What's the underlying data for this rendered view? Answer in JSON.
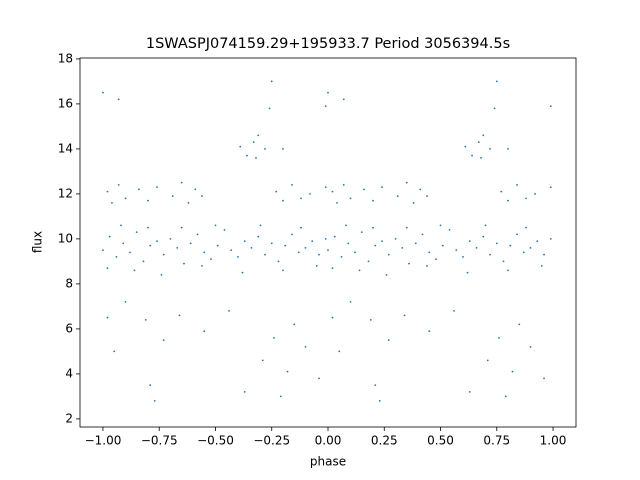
{
  "chart_data": {
    "type": "scatter",
    "title": "1SWASPJ074159.29+195933.7 Period 3056394.5s",
    "x_label": "phase",
    "y_label": "flux",
    "color": "#1f77b4",
    "xlim": [
      -1.102,
      1.102
    ],
    "ylim": [
      1.64,
      18.04
    ],
    "xticks": [
      {
        "value": -1,
        "label": "−1.00"
      },
      {
        "value": -0.75,
        "label": "−0.75"
      },
      {
        "value": -0.5,
        "label": "−0.50"
      },
      {
        "value": -0.25,
        "label": "−0.25"
      },
      {
        "value": 0,
        "label": "0.00"
      },
      {
        "value": 0.25,
        "label": "0.25"
      },
      {
        "value": 0.5,
        "label": "0.50"
      },
      {
        "value": 0.75,
        "label": "0.75"
      },
      {
        "value": 1,
        "label": "1.00"
      }
    ],
    "yticks": [
      2,
      4,
      6,
      8,
      10,
      12,
      14,
      16,
      18
    ],
    "x": [
      0,
      0.03,
      0.06,
      0.09,
      0.12,
      0.15,
      0.18,
      0.21,
      0.24,
      0.27,
      0.3,
      0.33,
      0.36,
      0.39,
      0.42,
      0.45,
      0.48,
      0.51,
      0.54,
      0.57,
      0.6,
      0.63,
      0.66,
      0.69,
      0.72,
      0.75,
      0.78,
      0.81,
      0.84,
      0.87,
      0.9,
      0.93,
      0.96,
      0.99,
      0.02,
      0.08,
      0.14,
      0.2,
      0.26,
      0.35,
      0.44,
      0.5,
      0.62,
      0.7,
      0.8,
      0.88,
      0.95,
      0.02,
      0.04,
      0.07,
      0.1,
      0.16,
      0.2,
      0.24,
      0.31,
      0.35,
      0.38,
      0.41,
      0.44,
      0.77,
      0.8,
      0.84,
      0.88,
      0.92,
      0.99,
      0.61,
      0.64,
      0.67,
      0.68,
      0.72,
      0.69,
      0.8,
      0,
      0.74,
      0.99,
      0.75,
      0.07,
      0.02,
      0.05,
      0.1,
      0.19,
      0.21,
      0.23,
      0.27,
      0.34,
      0.45,
      0.56,
      0.63,
      0.71,
      0.76,
      0.79,
      0.82,
      0.85,
      0.9,
      0.96,
      -1,
      -0.97,
      -0.94,
      -0.91,
      -0.88,
      -0.85,
      -0.82,
      -0.79,
      -0.76,
      -0.73,
      -0.7,
      -0.67,
      -0.64,
      -0.61,
      -0.58,
      -0.55,
      -0.52,
      -0.49,
      -0.46,
      -0.43,
      -0.4,
      -0.37,
      -0.34,
      -0.31,
      -0.28,
      -0.25,
      -0.22,
      -0.19,
      -0.16,
      -0.13,
      -0.1,
      -0.07,
      -0.04,
      -0.01,
      -0.98,
      -0.92,
      -0.86,
      -0.8,
      -0.74,
      -0.65,
      -0.56,
      -0.5,
      -0.38,
      -0.3,
      -0.2,
      -0.12,
      -0.05,
      -0.98,
      -0.96,
      -0.93,
      -0.9,
      -0.84,
      -0.8,
      -0.76,
      -0.69,
      -0.65,
      -0.62,
      -0.59,
      -0.56,
      -0.23,
      -0.2,
      -0.16,
      -0.12,
      -0.08,
      -0.01,
      -0.39,
      -0.36,
      -0.33,
      -0.32,
      -0.28,
      -0.31,
      -0.2,
      -1,
      -0.26,
      -0.01,
      -0.25,
      -0.93,
      -0.98,
      -0.95,
      -0.9,
      -0.81,
      -0.79,
      -0.77,
      -0.73,
      -0.66,
      -0.55,
      -0.44,
      -0.37,
      -0.29,
      -0.24,
      -0.21,
      -0.18,
      -0.15,
      -0.1,
      -0.04
    ],
    "values": [
      9.5,
      10.1,
      9.2,
      9.8,
      9.4,
      10.3,
      9.0,
      9.7,
      9.9,
      9.3,
      10.0,
      9.6,
      8.9,
      9.8,
      10.2,
      9.4,
      9.1,
      9.7,
      10.4,
      9.5,
      9.2,
      9.9,
      9.6,
      10.1,
      9.3,
      9.8,
      9.0,
      9.7,
      10.2,
      9.4,
      9.6,
      9.9,
      9.3,
      10.0,
      8.7,
      10.6,
      8.6,
      10.5,
      8.4,
      10.5,
      8.8,
      10.6,
      8.5,
      10.6,
      8.6,
      10.5,
      8.8,
      12.1,
      11.6,
      12.4,
      11.8,
      12.2,
      11.7,
      12.3,
      11.9,
      12.5,
      11.6,
      12.2,
      11.9,
      12.1,
      11.7,
      12.4,
      11.8,
      12.0,
      12.3,
      14.1,
      13.7,
      14.3,
      13.6,
      14.0,
      14.6,
      14.0,
      16.5,
      15.8,
      15.9,
      17.0,
      16.2,
      6.5,
      5.0,
      7.2,
      6.4,
      3.5,
      2.8,
      5.5,
      6.6,
      5.9,
      6.8,
      3.2,
      4.6,
      5.6,
      3.0,
      4.1,
      6.2,
      5.2,
      3.8,
      9.5,
      10.1,
      9.2,
      9.8,
      9.4,
      10.3,
      9.0,
      9.7,
      9.9,
      9.3,
      10.0,
      9.6,
      8.9,
      9.8,
      10.2,
      9.4,
      9.1,
      9.7,
      10.4,
      9.5,
      9.2,
      9.9,
      9.6,
      10.1,
      9.3,
      9.8,
      9.0,
      9.7,
      10.2,
      9.4,
      9.6,
      9.9,
      9.3,
      10.0,
      8.7,
      10.6,
      8.6,
      10.5,
      8.4,
      10.5,
      8.8,
      10.6,
      8.5,
      10.6,
      8.6,
      10.5,
      8.8,
      12.1,
      11.6,
      12.4,
      11.8,
      12.2,
      11.7,
      12.3,
      11.9,
      12.5,
      11.6,
      12.2,
      11.9,
      12.1,
      11.7,
      12.4,
      11.8,
      12.0,
      12.3,
      14.1,
      13.7,
      14.3,
      13.6,
      14.0,
      14.6,
      14.0,
      16.5,
      15.8,
      15.9,
      17.0,
      16.2,
      6.5,
      5.0,
      7.2,
      6.4,
      3.5,
      2.8,
      5.5,
      6.6,
      5.9,
      6.8,
      3.2,
      4.6,
      5.6,
      3.0,
      4.1,
      6.2,
      5.2,
      3.8
    ]
  }
}
